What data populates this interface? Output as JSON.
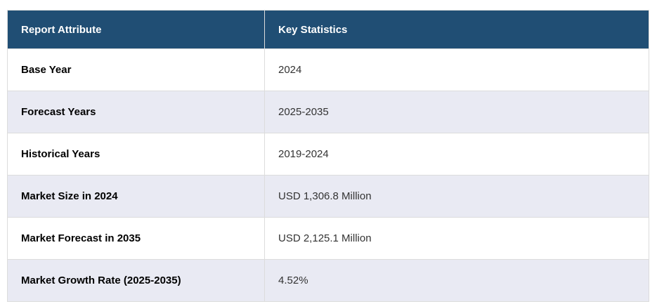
{
  "table": {
    "columns": [
      {
        "label": "Report Attribute"
      },
      {
        "label": "Key Statistics"
      }
    ],
    "rows": [
      {
        "attribute": "Base Year",
        "value": "2024"
      },
      {
        "attribute": "Forecast Years",
        "value": "2025-2035"
      },
      {
        "attribute": "Historical Years",
        "value": "2019-2024"
      },
      {
        "attribute": "Market Size in 2024",
        "value": "USD 1,306.8 Million"
      },
      {
        "attribute": "Market Forecast in 2035",
        "value": "USD 2,125.1 Million"
      },
      {
        "attribute": "Market Growth Rate (2025-2035)",
        "value": "4.52%"
      }
    ]
  },
  "colors": {
    "header_bg": "#204E74",
    "header_text": "#FFFFFF",
    "row_alt_bg": "#E9EAF3",
    "row_bg": "#FFFFFF",
    "border": "#DCDCDC",
    "attribute_text": "#000000",
    "value_text": "#333333"
  }
}
